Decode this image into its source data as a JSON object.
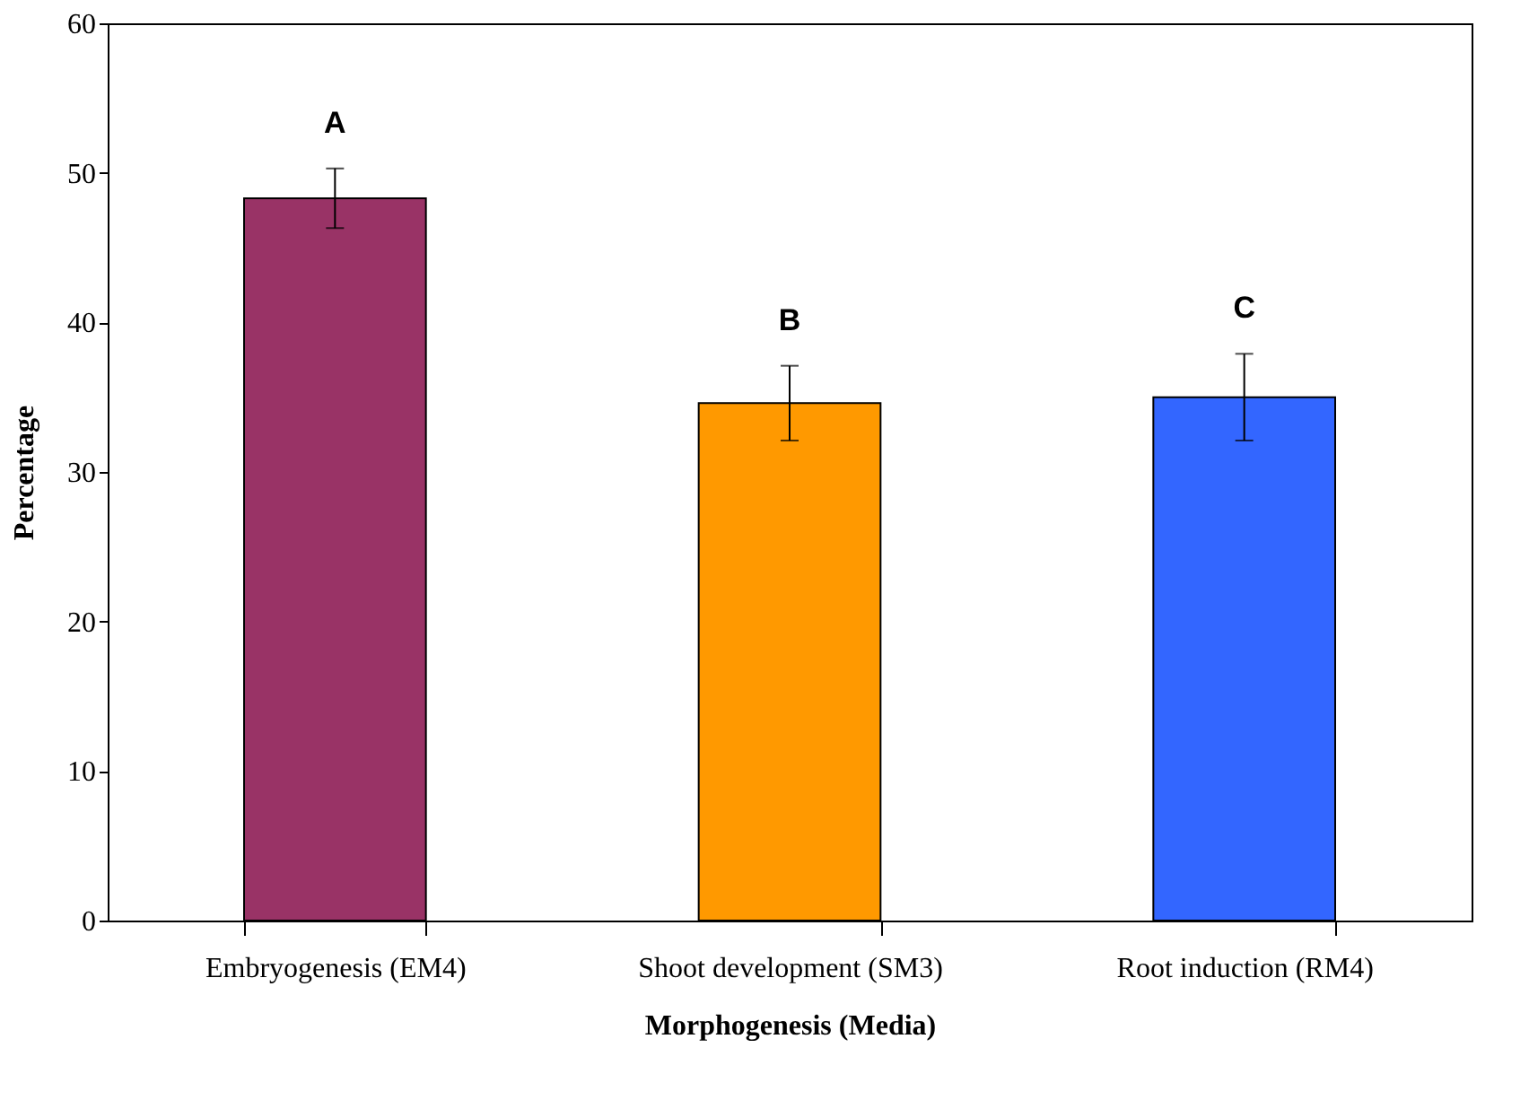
{
  "chart_data": {
    "type": "bar",
    "xlabel": "Morphogenesis (Media)",
    "ylabel": "Percentage",
    "categories": [
      "Embryogenesis (EM4)",
      "Shoot development (SM3)",
      "Root induction (RM4)"
    ],
    "values": [
      48.3,
      34.6,
      35.0
    ],
    "errors": [
      2.0,
      2.5,
      2.9
    ],
    "colors": [
      "#993366",
      "#ff9900",
      "#3366ff"
    ],
    "ylim": [
      0,
      60
    ],
    "yticks": [
      0,
      10,
      20,
      30,
      40,
      50,
      60
    ],
    "grid": false,
    "legend": false,
    "annotations": [
      "A",
      "B",
      "C"
    ]
  }
}
